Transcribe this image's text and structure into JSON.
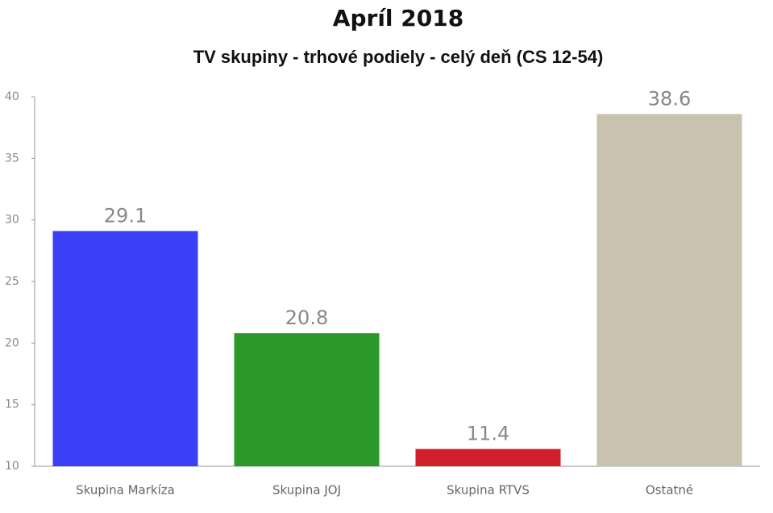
{
  "chart_data": {
    "type": "bar",
    "title": "Apríl 2018",
    "subtitle": "TV skupiny - trhové podiely - celý deň (CS 12-54)",
    "categories": [
      "Skupina Markíza",
      "Skupina JOJ",
      "Skupina RTVS",
      "Ostatné"
    ],
    "values": [
      29.1,
      20.8,
      11.4,
      38.6
    ],
    "colors": [
      "#3b3ff5",
      "#2a992a",
      "#d01f2b",
      "#c8c2ae"
    ],
    "ylim": [
      10,
      40
    ],
    "yticks": [
      10,
      15,
      20,
      25,
      30,
      35,
      40
    ],
    "grid": false
  }
}
